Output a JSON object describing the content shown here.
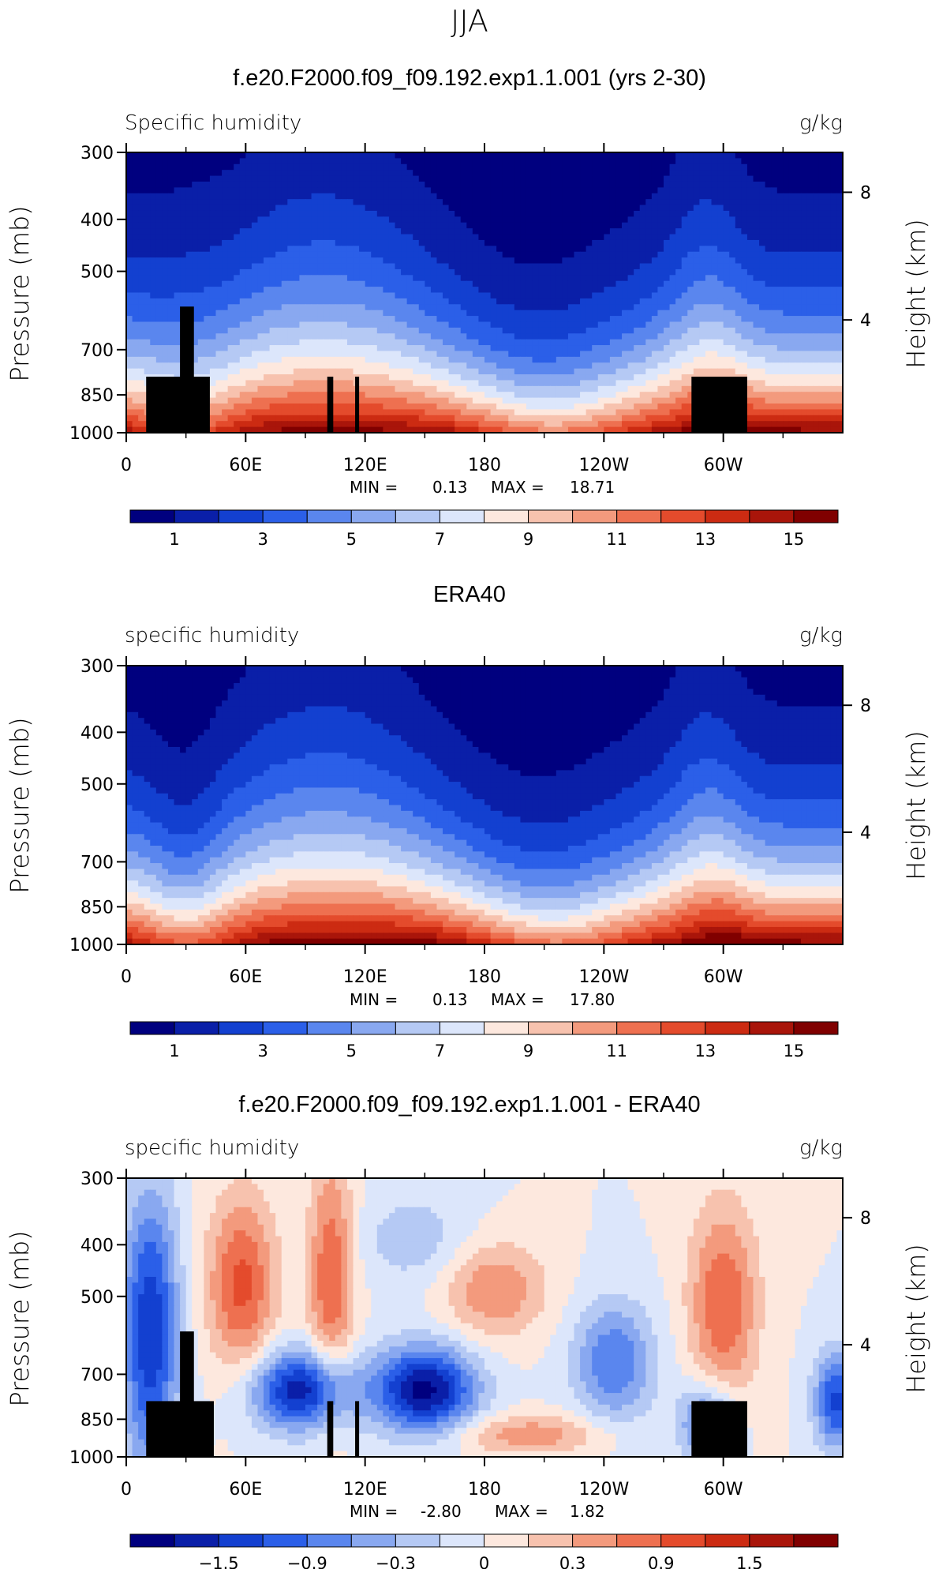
{
  "figure_title": "JJA",
  "chart_data": [
    {
      "type": "heatmap",
      "title": "f.e20.F2000.f09_f09.192.exp1.1.001 (yrs 2-30)",
      "subtitle": "Specific humidity",
      "units": "g/kg",
      "ylabel": "Pressure (mb)",
      "ylabel_right": "Height (km)",
      "x_ticks": [
        "0",
        "60E",
        "120E",
        "180",
        "120W",
        "60W"
      ],
      "y_ticks": [
        "300",
        "400",
        "500",
        "700",
        "850",
        "1000"
      ],
      "y2_ticks": [
        "8",
        "4"
      ],
      "stats": {
        "min_label": "MIN =",
        "min": "0.13",
        "max_label": "MAX =",
        "max": "18.71"
      },
      "colorbar_labels": [
        "1",
        "3",
        "5",
        "7",
        "9",
        "11",
        "13",
        "15"
      ],
      "field_kind": "model"
    },
    {
      "type": "heatmap",
      "title": "ERA40",
      "subtitle": "specific humidity",
      "units": "g/kg",
      "ylabel": "Pressure (mb)",
      "ylabel_right": "Height (km)",
      "x_ticks": [
        "0",
        "60E",
        "120E",
        "180",
        "120W",
        "60W"
      ],
      "y_ticks": [
        "300",
        "400",
        "500",
        "700",
        "850",
        "1000"
      ],
      "y2_ticks": [
        "8",
        "4"
      ],
      "stats": {
        "min_label": "MIN =",
        "min": "0.13",
        "max_label": "MAX =",
        "max": "17.80"
      },
      "colorbar_labels": [
        "1",
        "3",
        "5",
        "7",
        "9",
        "11",
        "13",
        "15"
      ],
      "field_kind": "obs"
    },
    {
      "type": "heatmap",
      "title": "f.e20.F2000.f09_f09.192.exp1.1.001 - ERA40",
      "subtitle": "specific humidity",
      "units": "g/kg",
      "ylabel": "Pressure (mb)",
      "ylabel_right": "Height (km)",
      "x_ticks": [
        "0",
        "60E",
        "120E",
        "180",
        "120W",
        "60W"
      ],
      "y_ticks": [
        "300",
        "400",
        "500",
        "700",
        "850",
        "1000"
      ],
      "y2_ticks": [
        "8",
        "4"
      ],
      "stats": {
        "min_label": "MIN =",
        "min": "-2.80",
        "max_label": "MAX =",
        "max": "1.82"
      },
      "colorbar_labels": [
        "−1.5",
        "−0.9",
        "−0.3",
        "0",
        "0.3",
        "0.9",
        "1.5"
      ],
      "field_kind": "diff"
    }
  ],
  "colors": {
    "palette": [
      "#00007f",
      "#0a1fa8",
      "#1340d0",
      "#2b5fe8",
      "#5a86ee",
      "#89a8f0",
      "#b5c9f4",
      "#dce6fb",
      "#fde8de",
      "#f7c2ae",
      "#f39a7d",
      "#ee7050",
      "#e44b2c",
      "#cc2b12",
      "#a9150a",
      "#800000"
    ]
  }
}
